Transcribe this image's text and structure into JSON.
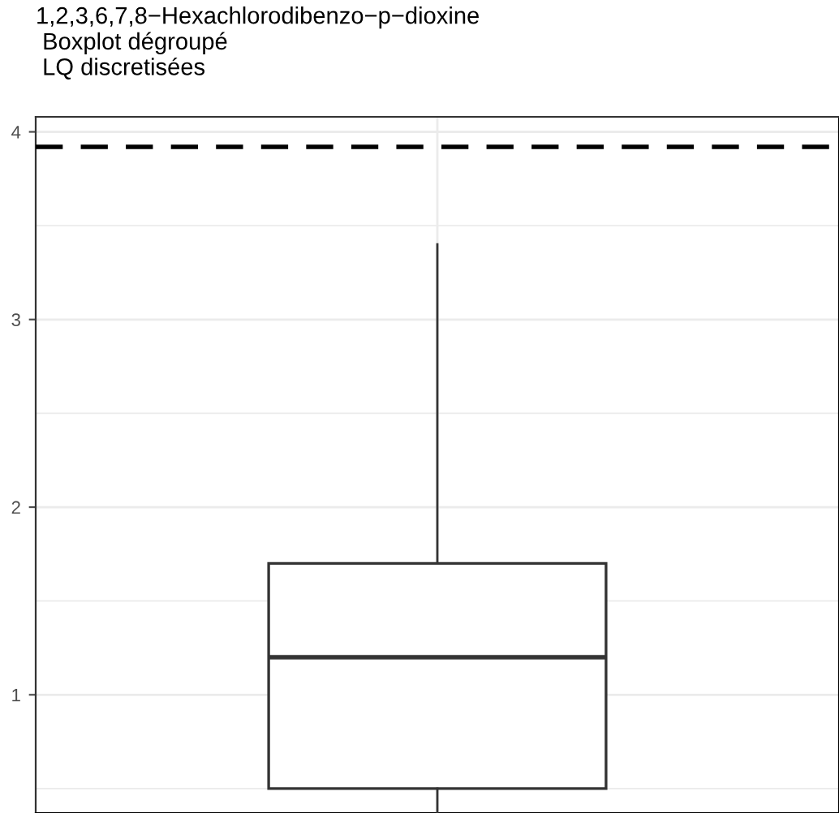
{
  "chart_data": {
    "type": "box",
    "title": "1,2,3,6,7,8−Hexachlorodibenzo−p−dioxine\n Boxplot dégroupé\n LQ discretisées",
    "categories": [
      null
    ],
    "boxes": [
      {
        "low": 0.37,
        "q1": 0.5,
        "median": 1.2,
        "q3": 1.7,
        "high": 3.4
      }
    ],
    "ylim": [
      0.37,
      4.08
    ],
    "yticks": [
      1,
      2,
      3,
      4
    ],
    "grid": true,
    "tick_labels": "y",
    "ref_lines": [
      {
        "axis": "y",
        "value": 3.92,
        "color": "#000000",
        "line_style": "dashed"
      }
    ]
  }
}
